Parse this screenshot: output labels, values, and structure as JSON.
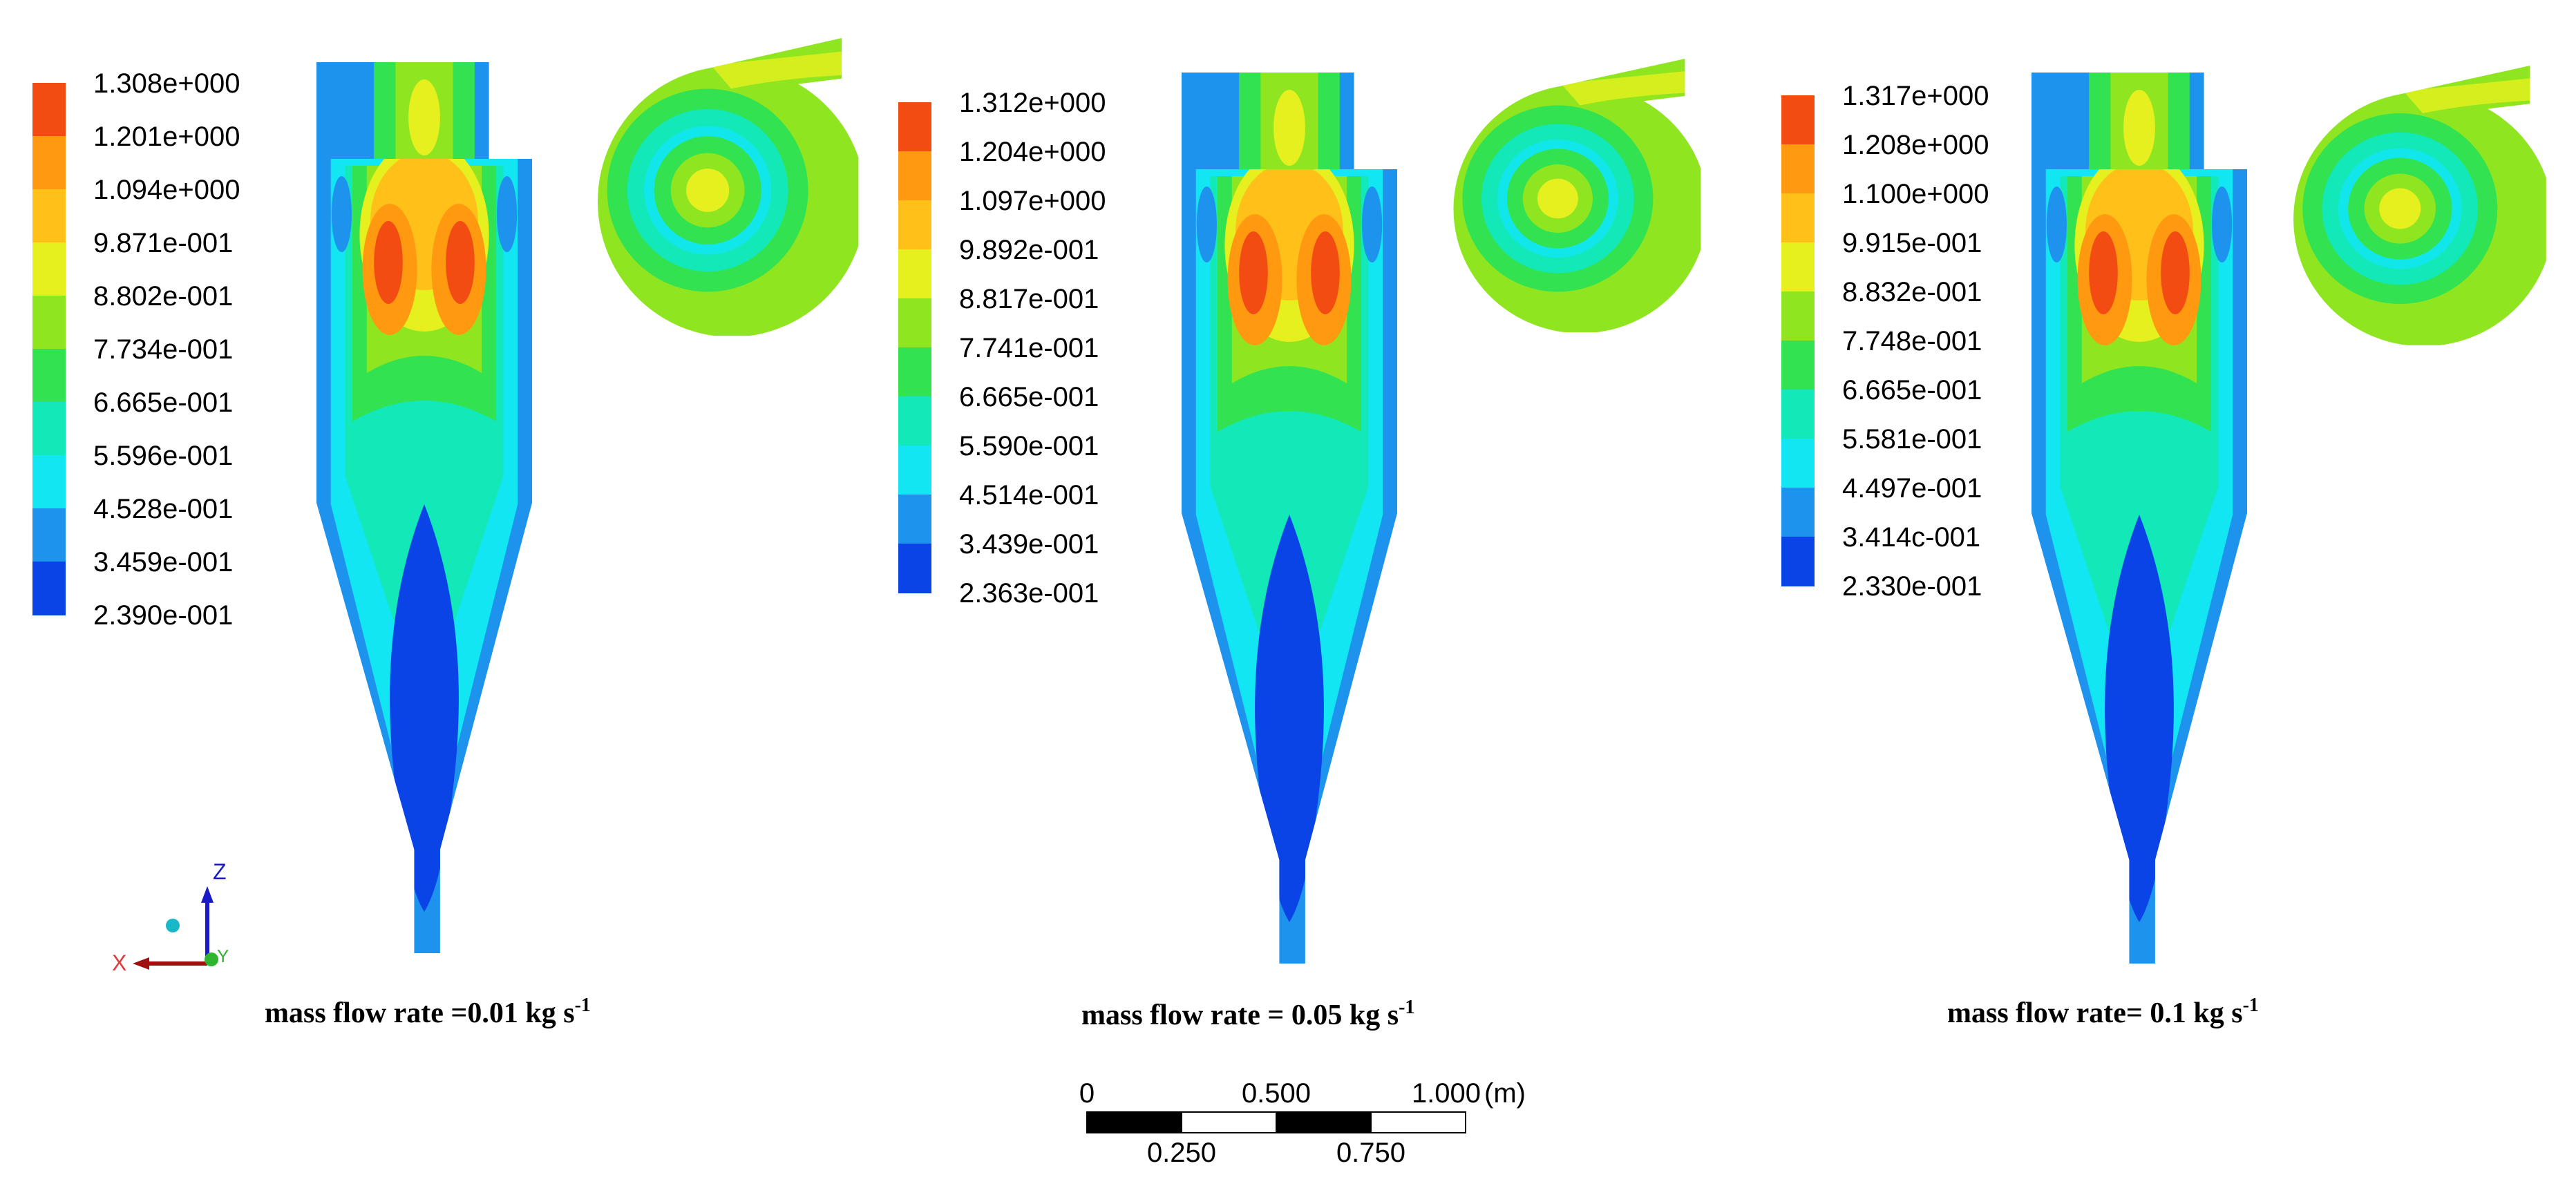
{
  "colors": {
    "scale": [
      "#0a44e6",
      "#1e93ee",
      "#12e6f3",
      "#12e8b8",
      "#33e250",
      "#8fe620",
      "#e6f01e",
      "#ffc01a",
      "#ff9a10",
      "#f24c12"
    ],
    "core": "#0a44e6"
  },
  "panels": [
    {
      "legend": [
        "1.308e+000",
        "1.201e+000",
        "1.094e+000",
        "9.871e-001",
        "8.802e-001",
        "7.734e-001",
        "6.665e-001",
        "5.596e-001",
        "4.528e-001",
        "3.459e-001",
        "2.390e-001"
      ],
      "caption": {
        "text": "mass flow rate =0.01 kg s",
        "exp": "-1"
      }
    },
    {
      "legend": [
        "1.312e+000",
        "1.204e+000",
        "1.097e+000",
        "9.892e-001",
        "8.817e-001",
        "7.741e-001",
        "6.665e-001",
        "5.590e-001",
        "4.514e-001",
        "3.439e-001",
        "2.363e-001"
      ],
      "caption": {
        "text": "mass flow rate = 0.05 kg s",
        "exp": "-1"
      }
    },
    {
      "legend": [
        "1.317e+000",
        "1.208e+000",
        "1.100e+000",
        "9.915e-001",
        "8.832e-001",
        "7.748e-001",
        "6.665e-001",
        "5.581e-001",
        "4.497e-001",
        "3.414c-001",
        "2.330e-001"
      ],
      "caption": {
        "text": "mass flow rate= 0.1 kg s",
        "exp": "-1"
      }
    }
  ],
  "axes": {
    "z": "Z",
    "x": "X",
    "y": "Y"
  },
  "scalebar": {
    "top_labels": [
      "0",
      "0.500",
      "1.000"
    ],
    "unit": "(m)",
    "bottom_labels": [
      "0.250",
      "0.750"
    ]
  }
}
